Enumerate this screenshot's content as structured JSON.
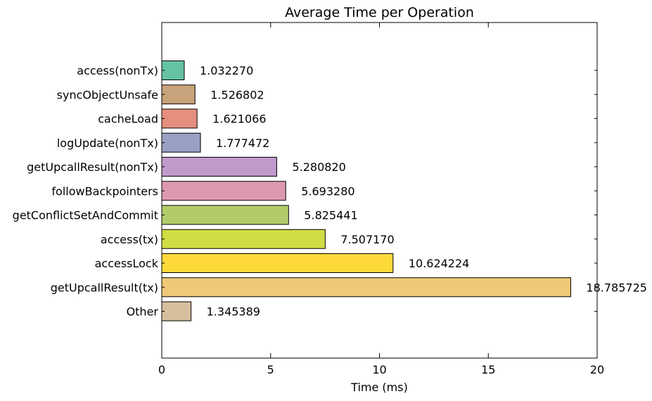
{
  "chart_data": {
    "type": "bar",
    "orientation": "horizontal",
    "title": "Average Time per Operation",
    "xlabel": "Time (ms)",
    "ylabel": "",
    "xlim": [
      0,
      20
    ],
    "xticks": [
      "0",
      "5",
      "10",
      "15",
      "20"
    ],
    "grid": false,
    "legend": "none",
    "categories": [
      "access(nonTx)",
      "syncObjectUnsafe",
      "cacheLoad",
      "logUpdate(nonTx)",
      "getUpcallResult(nonTx)",
      "followBackpointers",
      "getConflictSetAndCommit",
      "access(tx)",
      "accessLock",
      "getUpcallResult(tx)",
      "Other"
    ],
    "values": [
      1.03227,
      1.526802,
      1.621066,
      1.777472,
      5.28082,
      5.69328,
      5.825441,
      7.50717,
      10.624224,
      18.785725,
      1.345389
    ],
    "value_labels": [
      "1.032270",
      "1.526802",
      "1.621066",
      "1.777472",
      "5.280820",
      "5.693280",
      "5.825441",
      "7.507170",
      "10.624224",
      "18.785725",
      "1.345389"
    ],
    "colors": [
      "#66c2a5",
      "#c8a27a",
      "#e5907e",
      "#9aa0c3",
      "#c09acb",
      "#dd98b1",
      "#b2cc6c",
      "#d2dc44",
      "#fed93a",
      "#efc977",
      "#d6bf9d"
    ]
  }
}
